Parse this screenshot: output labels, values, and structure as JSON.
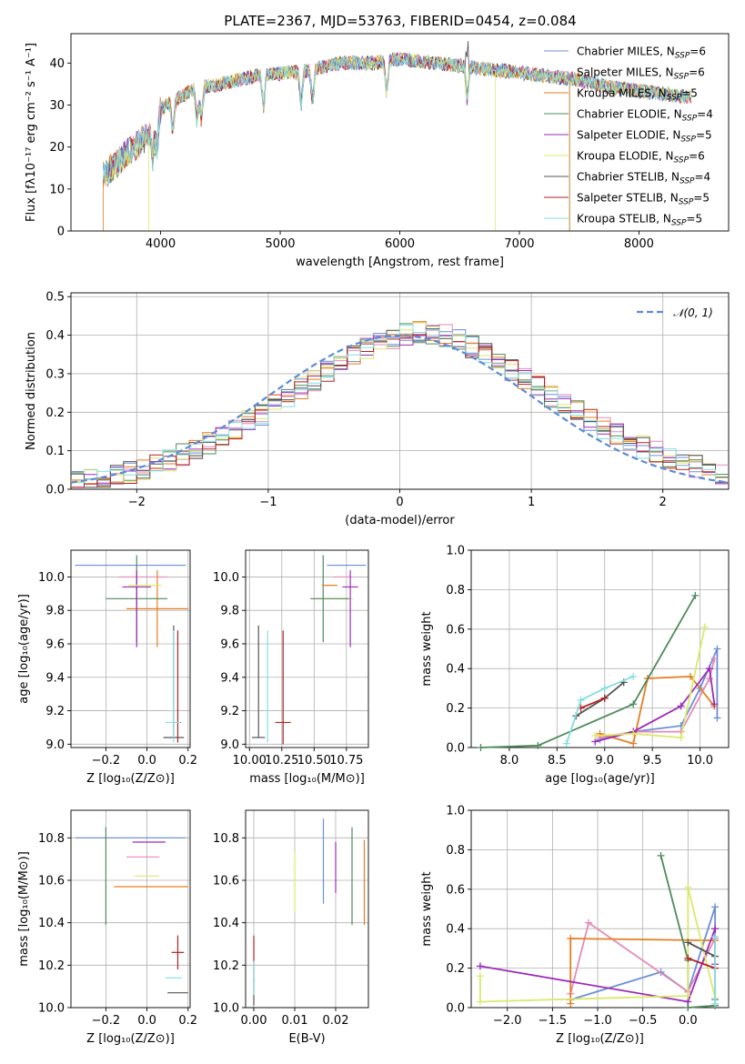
{
  "figure": {
    "title": "PLATE=2367, MJD=53763, FIBERID=0454, z=0.084"
  },
  "colors": [
    "#6a8fd8",
    "#e58ab8",
    "#e67e22",
    "#4f8a5b",
    "#9b2db8",
    "#dbe86b",
    "#555555",
    "#b22222",
    "#86dede"
  ],
  "chart_data": [
    {
      "id": "spectrum",
      "type": "line",
      "xlabel": "wavelength [Angstrom, rest frame]",
      "ylabel": "Flux [fλ10⁻¹⁷ erg cm⁻² s⁻¹ A⁻¹]",
      "xlim": [
        3250,
        8750
      ],
      "ylim": [
        0,
        47
      ],
      "xticks": [
        4000,
        5000,
        6000,
        7000,
        8000
      ],
      "yticks": [
        0,
        10,
        20,
        30,
        40
      ],
      "grid": false,
      "legend_position": "top-right",
      "series": [
        {
          "name": "Chabrier MILES, N_SSP=6"
        },
        {
          "name": "Salpeter MILES, N_SSP=6"
        },
        {
          "name": "Kroupa MILES, N_SSP=5"
        },
        {
          "name": "Chabrier ELODIE, N_SSP=4"
        },
        {
          "name": "Salpeter ELODIE, N_SSP=5"
        },
        {
          "name": "Kroupa ELODIE, N_SSP=6"
        },
        {
          "name": "Chabrier STELIB, N_SSP=4"
        },
        {
          "name": "Salpeter STELIB, N_SSP=5"
        },
        {
          "name": "Kroupa STELIB, N_SSP=5"
        }
      ],
      "continuum_profile": {
        "x": [
          3520,
          3700,
          3900,
          4000,
          4100,
          4300,
          4500,
          4800,
          5200,
          5500,
          5800,
          6000,
          6300,
          6600,
          6900,
          7200,
          7500,
          7800,
          8100,
          8400
        ],
        "y": [
          13,
          18,
          23,
          29,
          31,
          34,
          35,
          37,
          38,
          40,
          40,
          41,
          40,
          39,
          38,
          37,
          36,
          34,
          33,
          32
        ]
      }
    },
    {
      "id": "residual_hist",
      "type": "line",
      "xlabel": "(data-model)/error",
      "ylabel": "Normed distribution",
      "xlim": [
        -2.5,
        2.5
      ],
      "ylim": [
        0,
        0.51
      ],
      "xticks": [
        -2,
        -1,
        0,
        1,
        2
      ],
      "yticks": [
        0.0,
        0.1,
        0.2,
        0.3,
        0.4,
        0.5
      ],
      "grid": true,
      "legend_position": "top-right",
      "legend_label": "𝒩(0, 1)",
      "bin_width": 0.1,
      "bin_start": -2.5,
      "approx_density": [
        0.02,
        0.024,
        0.03,
        0.036,
        0.044,
        0.052,
        0.064,
        0.076,
        0.09,
        0.104,
        0.12,
        0.138,
        0.156,
        0.176,
        0.196,
        0.218,
        0.24,
        0.262,
        0.285,
        0.307,
        0.328,
        0.348,
        0.366,
        0.382,
        0.394,
        0.402,
        0.406,
        0.404,
        0.398,
        0.386,
        0.37,
        0.352,
        0.33,
        0.308,
        0.286,
        0.264,
        0.242,
        0.22,
        0.2,
        0.18,
        0.16,
        0.142,
        0.126,
        0.11,
        0.096,
        0.082,
        0.07,
        0.06,
        0.05,
        0.04
      ]
    },
    {
      "id": "age_vs_Z",
      "type": "scatter",
      "xlabel": "Z [log₁₀(Z/Z⊙)]",
      "ylabel": "age  [log₁₀(age/yr)]",
      "xlim": [
        -0.37,
        0.21
      ],
      "ylim": [
        8.98,
        10.16
      ],
      "xticks": [
        -0.2,
        0.0,
        0.2
      ],
      "yticks": [
        9.0,
        9.2,
        9.4,
        9.6,
        9.8,
        10.0
      ],
      "grid": true,
      "points": [
        {
          "x": -0.08,
          "y": 10.07,
          "xerr": [
            0.27,
            0.27
          ],
          "yerr": [
            0.0,
            0.0
          ]
        },
        {
          "x": -0.02,
          "y": 10.0,
          "xerr": [
            0.12,
            0.12
          ],
          "yerr": [
            0.0,
            0.0
          ]
        },
        {
          "x": 0.05,
          "y": 9.81,
          "xerr": [
            0.15,
            0.15
          ],
          "yerr": [
            0.23,
            0.23
          ]
        },
        {
          "x": -0.05,
          "y": 9.87,
          "xerr": [
            0.15,
            0.15
          ],
          "yerr": [
            0.26,
            0.26
          ]
        },
        {
          "x": -0.05,
          "y": 9.94,
          "xerr": [
            0.07,
            0.07
          ],
          "yerr": [
            0.36,
            0.1
          ]
        },
        {
          "x": -0.01,
          "y": 9.95,
          "xerr": [
            0.08,
            0.08
          ],
          "yerr": [
            0.0,
            0.0
          ]
        },
        {
          "x": 0.13,
          "y": 9.04,
          "xerr": [
            0.05,
            0.05
          ],
          "yerr": [
            0.0,
            0.67
          ]
        },
        {
          "x": 0.15,
          "y": 9.2,
          "xerr": [
            0.0,
            0.0
          ],
          "yerr": [
            0.19,
            0.48
          ]
        },
        {
          "x": 0.13,
          "y": 9.13,
          "xerr": [
            0.04,
            0.04
          ],
          "yerr": [
            0.12,
            0.55
          ]
        }
      ]
    },
    {
      "id": "age_vs_mass",
      "type": "scatter",
      "xlabel": "mass [log₁₀(M/M⊙)]",
      "ylabel": "",
      "xlim": [
        9.97,
        10.92
      ],
      "ylim": [
        8.98,
        10.16
      ],
      "xticks": [
        10.0,
        10.25,
        10.5,
        10.75
      ],
      "yticks": [
        9.0,
        9.2,
        9.4,
        9.6,
        9.8,
        10.0
      ],
      "grid": true,
      "points": [
        {
          "x": 10.8,
          "y": 10.07,
          "xerr": [
            0.2,
            0.1
          ],
          "yerr": [
            0.0,
            0.0
          ]
        },
        {
          "x": 10.72,
          "y": 10.0,
          "xerr": [
            0.07,
            0.07
          ],
          "yerr": [
            0.0,
            0.0
          ]
        },
        {
          "x": 10.65,
          "y": 9.87,
          "xerr": [
            0.15,
            0.15
          ],
          "yerr": [
            0.0,
            0.0
          ]
        },
        {
          "x": 10.57,
          "y": 9.87,
          "xerr": [
            0.1,
            0.2
          ],
          "yerr": [
            0.26,
            0.26
          ]
        },
        {
          "x": 10.78,
          "y": 9.94,
          "xerr": [
            0.06,
            0.06
          ],
          "yerr": [
            0.36,
            0.1
          ]
        },
        {
          "x": 10.62,
          "y": 9.95,
          "xerr": [
            0.06,
            0.06
          ],
          "yerr": [
            0.0,
            0.0
          ]
        },
        {
          "x": 10.07,
          "y": 9.04,
          "xerr": [
            0.05,
            0.05
          ],
          "yerr": [
            0.0,
            0.67
          ]
        },
        {
          "x": 10.26,
          "y": 9.13,
          "xerr": [
            0.06,
            0.06
          ],
          "yerr": [
            0.13,
            0.55
          ]
        },
        {
          "x": 10.14,
          "y": 9.2,
          "xerr": [
            0.0,
            0.0
          ],
          "yerr": [
            0.19,
            0.48
          ]
        }
      ]
    },
    {
      "id": "mass_vs_Z",
      "type": "scatter",
      "xlabel": "Z [log₁₀(Z/Z⊙)]",
      "ylabel": "mass [log₁₀(M/M⊙)]",
      "xlim": [
        -0.37,
        0.21
      ],
      "ylim": [
        10.0,
        10.93
      ],
      "xticks": [
        -0.2,
        0.0,
        0.2
      ],
      "yticks": [
        10.0,
        10.2,
        10.4,
        10.6,
        10.8
      ],
      "grid": true,
      "points": [
        {
          "x": -0.08,
          "y": 10.8,
          "xerr": [
            0.27,
            0.27
          ],
          "yerr": [
            0.0,
            0.0
          ]
        },
        {
          "x": -0.02,
          "y": 10.71,
          "xerr": [
            0.08,
            0.08
          ],
          "yerr": [
            0.0,
            0.0
          ]
        },
        {
          "x": 0.02,
          "y": 10.57,
          "xerr": [
            0.18,
            0.18
          ],
          "yerr": [
            0.0,
            0.0
          ]
        },
        {
          "x": -0.2,
          "y": 10.62,
          "xerr": [
            0.0,
            0.0
          ],
          "yerr": [
            0.23,
            0.23
          ]
        },
        {
          "x": 0.01,
          "y": 10.78,
          "xerr": [
            0.08,
            0.08
          ],
          "yerr": [
            0.0,
            0.0
          ]
        },
        {
          "x": 0.0,
          "y": 10.62,
          "xerr": [
            0.06,
            0.06
          ],
          "yerr": [
            0.0,
            0.0
          ]
        },
        {
          "x": 0.15,
          "y": 10.07,
          "xerr": [
            0.05,
            0.05
          ],
          "yerr": [
            0.0,
            0.0
          ]
        },
        {
          "x": 0.15,
          "y": 10.26,
          "xerr": [
            0.03,
            0.03
          ],
          "yerr": [
            0.08,
            0.08
          ]
        },
        {
          "x": 0.13,
          "y": 10.14,
          "xerr": [
            0.04,
            0.04
          ],
          "yerr": [
            0.0,
            0.0
          ]
        }
      ]
    },
    {
      "id": "mass_vs_EBV",
      "type": "scatter",
      "xlabel": "E(B-V)",
      "ylabel": "",
      "xlim": [
        -0.002,
        0.028
      ],
      "ylim": [
        10.0,
        10.93
      ],
      "xticks": [
        0.0,
        0.01,
        0.02
      ],
      "yticks": [
        10.0,
        10.2,
        10.4,
        10.6,
        10.8
      ],
      "grid": true,
      "points": [
        {
          "x": 0.017,
          "y": 10.69,
          "xerr": [
            0.0,
            0.0
          ],
          "yerr": [
            0.2,
            0.2
          ]
        },
        {
          "x": 0.027,
          "y": 10.59,
          "xerr": [
            0.0,
            0.0
          ],
          "yerr": [
            0.2,
            0.2
          ]
        },
        {
          "x": 0.024,
          "y": 10.62,
          "xerr": [
            0.0,
            0.0
          ],
          "yerr": [
            0.23,
            0.23
          ]
        },
        {
          "x": 0.02,
          "y": 10.66,
          "xerr": [
            0.0,
            0.0
          ],
          "yerr": [
            0.12,
            0.12
          ]
        },
        {
          "x": 0.01,
          "y": 10.59,
          "xerr": [
            0.0,
            0.0
          ],
          "yerr": [
            0.14,
            0.14
          ]
        },
        {
          "x": 0.0,
          "y": 10.07,
          "xerr": [
            0.0,
            0.0
          ],
          "yerr": [
            0.06,
            0.06
          ]
        },
        {
          "x": 0.0,
          "y": 10.23,
          "xerr": [
            0.0,
            0.0
          ],
          "yerr": [
            0.11,
            0.11
          ]
        },
        {
          "x": 0.0,
          "y": 10.14,
          "xerr": [
            0.0,
            0.0
          ],
          "yerr": [
            0.08,
            0.08
          ]
        }
      ]
    },
    {
      "id": "weight_vs_age",
      "type": "line",
      "xlabel": "age  [log₁₀(age/yr)]",
      "ylabel": "mass weight",
      "xlim": [
        7.6,
        10.3
      ],
      "ylim": [
        0,
        1.0
      ],
      "xticks": [
        8.0,
        8.5,
        9.0,
        9.5,
        10.0
      ],
      "yticks": [
        0.0,
        0.2,
        0.4,
        0.6,
        0.8,
        1.0
      ],
      "grid": true,
      "series": [
        {
          "color_index": 0,
          "x": [
            8.95,
            9.3,
            9.8,
            10.0,
            10.18,
            10.18
          ],
          "y": [
            0.04,
            0.08,
            0.11,
            0.3,
            0.5,
            0.15
          ]
        },
        {
          "color_index": 1,
          "x": [
            8.95,
            9.3,
            9.8,
            10.1,
            10.15
          ],
          "y": [
            0.05,
            0.08,
            0.08,
            0.35,
            0.45
          ]
        },
        {
          "color_index": 2,
          "x": [
            8.95,
            9.3,
            9.45,
            9.9,
            10.15
          ],
          "y": [
            0.07,
            0.02,
            0.35,
            0.36,
            0.21
          ]
        },
        {
          "color_index": 3,
          "x": [
            7.7,
            8.3,
            9.3,
            9.95
          ],
          "y": [
            0.0,
            0.01,
            0.22,
            0.77
          ]
        },
        {
          "color_index": 4,
          "x": [
            8.9,
            9.3,
            9.8,
            10.1,
            10.15
          ],
          "y": [
            0.03,
            0.08,
            0.21,
            0.4,
            0.22
          ]
        },
        {
          "color_index": 5,
          "x": [
            8.9,
            9.3,
            9.8,
            10.05
          ],
          "y": [
            0.06,
            0.07,
            0.05,
            0.61
          ]
        },
        {
          "color_index": 6,
          "x": [
            8.7,
            9.0,
            9.2
          ],
          "y": [
            0.16,
            0.25,
            0.33
          ]
        },
        {
          "color_index": 7,
          "x": [
            8.75,
            9.0
          ],
          "y": [
            0.2,
            0.25
          ]
        },
        {
          "color_index": 8,
          "x": [
            8.6,
            8.75,
            9.0,
            9.3
          ],
          "y": [
            0.02,
            0.24,
            0.3,
            0.36
          ]
        }
      ]
    },
    {
      "id": "weight_vs_Z",
      "type": "line",
      "xlabel": "Z [log₁₀(Z/Z⊙)]",
      "ylabel": "mass weight",
      "xlim": [
        -2.4,
        0.45
      ],
      "ylim": [
        0,
        1.0
      ],
      "xticks": [
        -2.0,
        -1.5,
        -1.0,
        -0.5,
        0.0
      ],
      "yticks": [
        0.0,
        0.2,
        0.4,
        0.6,
        0.8,
        1.0
      ],
      "grid": true,
      "series": [
        {
          "color_index": 0,
          "x": [
            -1.3,
            -0.3,
            0.0,
            0.3,
            0.3
          ],
          "y": [
            0.04,
            0.18,
            0.08,
            0.51,
            0.04
          ]
        },
        {
          "color_index": 1,
          "x": [
            -1.3,
            -1.1,
            0.0,
            0.3
          ],
          "y": [
            0.07,
            0.43,
            0.08,
            0.35
          ]
        },
        {
          "color_index": 2,
          "x": [
            -1.3,
            -1.3,
            0.3
          ],
          "y": [
            0.02,
            0.35,
            0.34
          ]
        },
        {
          "color_index": 3,
          "x": [
            -0.3,
            0.0,
            0.0,
            0.3
          ],
          "y": [
            0.77,
            0.24,
            0.0,
            0.01
          ]
        },
        {
          "color_index": 4,
          "x": [
            -2.3,
            0.0,
            0.3,
            0.3
          ],
          "y": [
            0.21,
            0.03,
            0.4,
            0.22
          ]
        },
        {
          "color_index": 5,
          "x": [
            -2.3,
            -2.3,
            0.0,
            0.0,
            0.3
          ],
          "y": [
            0.16,
            0.03,
            0.06,
            0.61,
            0.05
          ]
        },
        {
          "color_index": 6,
          "x": [
            0.0,
            0.3
          ],
          "y": [
            0.33,
            0.26
          ]
        },
        {
          "color_index": 7,
          "x": [
            0.0,
            0.3
          ],
          "y": [
            0.25,
            0.2
          ]
        },
        {
          "color_index": 8,
          "x": [
            0.3,
            0.3
          ],
          "y": [
            0.36,
            0.02
          ]
        }
      ]
    }
  ]
}
